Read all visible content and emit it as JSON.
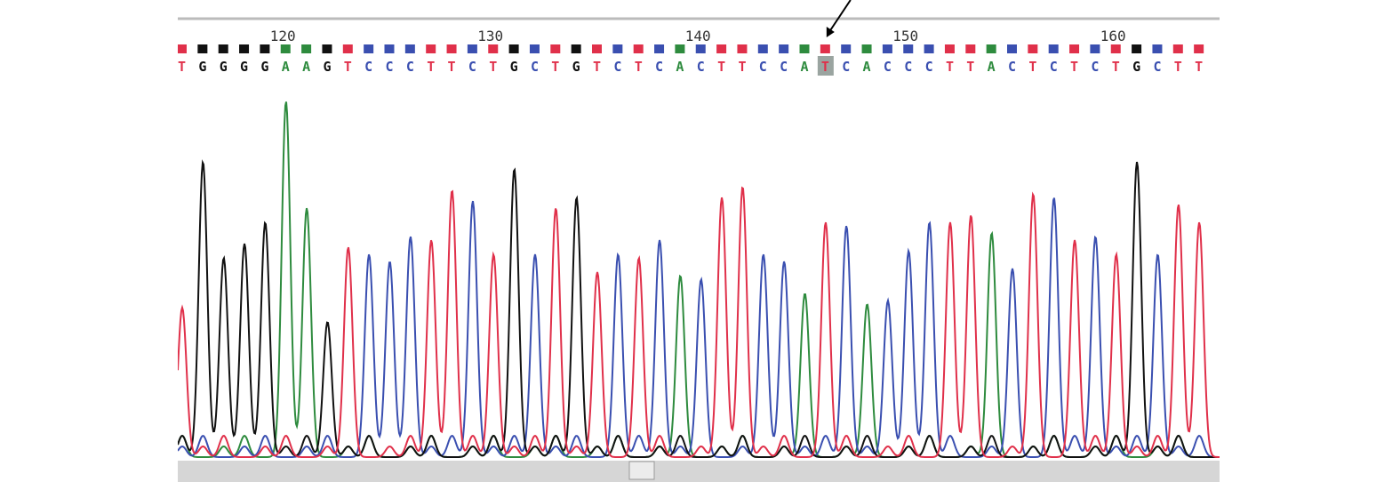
{
  "colors": {
    "A": "#2e8b3e",
    "C": "#3a4fb0",
    "G": "#111111",
    "T": "#e0304a",
    "highlight": "#9aa4a0",
    "ruler": "#bbbbbb",
    "scrollbar": "#d6d6d6"
  },
  "chart_data": {
    "type": "line",
    "title": "",
    "xlabel": "",
    "ylabel": "",
    "sequence": "TGGGGAAGTCCCTTCTGCTGTCTCACTTCCATCACCCTTACTCTCTGCTT",
    "first_position": 115,
    "position_labels": [
      120,
      130,
      140,
      150,
      160
    ],
    "highlighted_position": 146,
    "confidence_colors": [
      "T",
      "G",
      "G",
      "G",
      "G",
      "A",
      "A",
      "G",
      "T",
      "C",
      "C",
      "C",
      "T",
      "T",
      "C",
      "T",
      "G",
      "C",
      "T",
      "G",
      "T",
      "C",
      "T",
      "C",
      "A",
      "C",
      "T",
      "T",
      "C",
      "C",
      "A",
      "T",
      "C",
      "A",
      "C",
      "C",
      "C",
      "T",
      "T",
      "A",
      "C",
      "T",
      "C",
      "T",
      "C",
      "T",
      "G",
      "C",
      "T",
      "T"
    ],
    "peak_heights": [
      0.42,
      0.83,
      0.56,
      0.6,
      0.66,
      1.0,
      0.7,
      0.38,
      0.59,
      0.57,
      0.55,
      0.62,
      0.61,
      0.75,
      0.72,
      0.57,
      0.81,
      0.57,
      0.7,
      0.73,
      0.52,
      0.57,
      0.56,
      0.61,
      0.51,
      0.5,
      0.73,
      0.76,
      0.57,
      0.55,
      0.46,
      0.66,
      0.65,
      0.43,
      0.44,
      0.58,
      0.66,
      0.66,
      0.68,
      0.63,
      0.53,
      0.74,
      0.73,
      0.61,
      0.62,
      0.57,
      0.83,
      0.57,
      0.71,
      0.66
    ],
    "series": [
      {
        "name": "A"
      },
      {
        "name": "C"
      },
      {
        "name": "G"
      },
      {
        "name": "T"
      }
    ]
  }
}
